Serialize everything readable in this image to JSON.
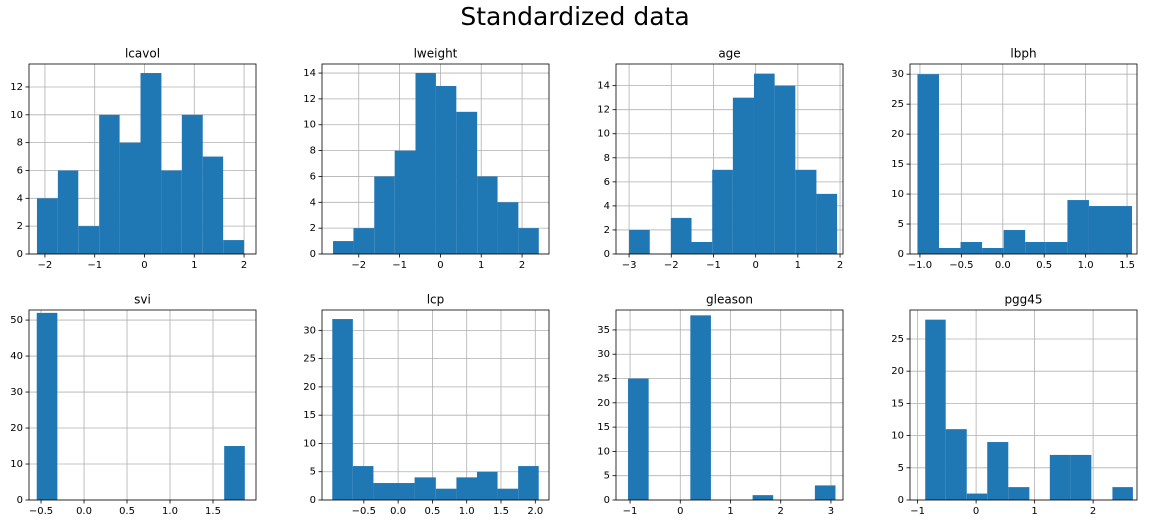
{
  "title": "Standardized data",
  "chart_data": [
    {
      "type": "histogram",
      "title": "lcavol",
      "color": "#1f77b4",
      "grid": true,
      "bins": [
        -2.16,
        -1.74,
        -1.33,
        -0.91,
        -0.5,
        -0.08,
        0.34,
        0.75,
        1.17,
        1.58,
        2.0
      ],
      "values": [
        4,
        6,
        2,
        10,
        8,
        13,
        6,
        10,
        7,
        1
      ],
      "xlim": [
        -2.32,
        2.24
      ],
      "xticks": [
        {
          "value": -2,
          "label": "−2"
        },
        {
          "value": -1,
          "label": "−1"
        },
        0,
        1,
        2
      ],
      "ylim": [
        0,
        13.65
      ],
      "yticks": [
        0,
        2,
        4,
        6,
        8,
        10,
        12
      ]
    },
    {
      "type": "histogram",
      "title": "lweight",
      "color": "#1f77b4",
      "grid": true,
      "bins": [
        -2.63,
        -2.13,
        -1.62,
        -1.12,
        -0.61,
        -0.11,
        0.39,
        0.9,
        1.4,
        1.91,
        2.41
      ],
      "values": [
        1,
        2,
        6,
        8,
        14,
        13,
        11,
        6,
        4,
        2
      ],
      "xlim": [
        -2.9,
        2.66
      ],
      "xticks": [
        {
          "value": -2,
          "label": "−2"
        },
        {
          "value": -1,
          "label": "−1"
        },
        0,
        1,
        2
      ],
      "ylim": [
        0,
        14.7
      ],
      "yticks": [
        0,
        2,
        4,
        6,
        8,
        10,
        12,
        14
      ]
    },
    {
      "type": "histogram",
      "title": "age",
      "color": "#1f77b4",
      "grid": true,
      "bins": [
        -3.0,
        -2.51,
        -2.01,
        -1.52,
        -1.03,
        -0.54,
        -0.04,
        0.45,
        0.94,
        1.44,
        1.93
      ],
      "values": [
        2,
        0,
        3,
        1,
        7,
        13,
        15,
        14,
        7,
        5
      ],
      "xlim": [
        -3.31,
        2.07
      ],
      "xticks": [
        {
          "value": -3,
          "label": "−3"
        },
        {
          "value": -2,
          "label": "−2"
        },
        {
          "value": -1,
          "label": "−1"
        },
        0,
        1,
        2
      ],
      "ylim": [
        0,
        15.8
      ],
      "yticks": [
        0,
        2,
        4,
        6,
        8,
        10,
        12,
        14
      ]
    },
    {
      "type": "histogram",
      "title": "lbph",
      "color": "#1f77b4",
      "grid": true,
      "bins": [
        -1.03,
        -0.77,
        -0.51,
        -0.25,
        0.01,
        0.27,
        0.52,
        0.78,
        1.04,
        1.3,
        1.56
      ],
      "values": [
        30,
        1,
        2,
        1,
        4,
        2,
        2,
        9,
        8,
        8
      ],
      "xlim": [
        -1.12,
        1.62
      ],
      "xticks": [
        {
          "value": -1,
          "label": "−1.0"
        },
        {
          "value": -0.5,
          "label": "−0.5"
        },
        {
          "value": 0,
          "label": "0.0"
        },
        0.5,
        {
          "value": 1,
          "label": "1.0"
        },
        1.5
      ],
      "ylim": [
        0,
        31.7
      ],
      "yticks": [
        0,
        5,
        10,
        15,
        20,
        25,
        30
      ]
    },
    {
      "type": "histogram",
      "title": "svi",
      "color": "#1f77b4",
      "grid": true,
      "bins": [
        -0.55,
        -0.31,
        -0.07,
        0.18,
        0.42,
        0.66,
        0.9,
        1.14,
        1.39,
        1.63,
        1.87
      ],
      "values": [
        52,
        0,
        0,
        0,
        0,
        0,
        0,
        0,
        0,
        15
      ],
      "xlim": [
        -0.64,
        2.0
      ],
      "xticks": [
        {
          "value": -0.5,
          "label": "−0.5"
        },
        {
          "value": 0,
          "label": "0.0"
        },
        0.5,
        {
          "value": 1,
          "label": "1.0"
        },
        1.5
      ],
      "ylim": [
        0,
        52.8
      ],
      "yticks": [
        0,
        10,
        20,
        30,
        40,
        50
      ]
    },
    {
      "type": "histogram",
      "title": "lcp",
      "color": "#1f77b4",
      "grid": true,
      "bins": [
        -0.96,
        -0.66,
        -0.36,
        -0.06,
        0.24,
        0.55,
        0.85,
        1.15,
        1.45,
        1.75,
        2.05
      ],
      "values": [
        32,
        6,
        3,
        3,
        4,
        2,
        4,
        5,
        2,
        6
      ],
      "xlim": [
        -1.11,
        2.2
      ],
      "xticks": [
        {
          "value": -0.5,
          "label": "−0.5"
        },
        {
          "value": 0,
          "label": "0.0"
        },
        0.5,
        {
          "value": 1,
          "label": "1.0"
        },
        1.5,
        {
          "value": 2,
          "label": "2.0"
        }
      ],
      "ylim": [
        0,
        33.6
      ],
      "yticks": [
        0,
        5,
        10,
        15,
        20,
        25,
        30
      ]
    },
    {
      "type": "histogram",
      "title": "gleason",
      "color": "#1f77b4",
      "grid": true,
      "bins": [
        -1.04,
        -0.63,
        -0.21,
        0.2,
        0.61,
        1.03,
        1.44,
        1.85,
        2.26,
        2.68,
        3.09
      ],
      "values": [
        25,
        0,
        0,
        38,
        0,
        0,
        1,
        0,
        0,
        3
      ],
      "xlim": [
        -1.28,
        3.24
      ],
      "xticks": [
        {
          "value": -1,
          "label": "−1"
        },
        0,
        1,
        2,
        3
      ],
      "ylim": [
        0,
        39.1
      ],
      "yticks": [
        0,
        5,
        10,
        15,
        20,
        25,
        30,
        35
      ]
    },
    {
      "type": "histogram",
      "title": "pgg45",
      "color": "#1f77b4",
      "grid": true,
      "bins": [
        -0.87,
        -0.52,
        -0.16,
        0.19,
        0.55,
        0.91,
        1.26,
        1.62,
        1.97,
        2.33,
        2.68
      ],
      "values": [
        28,
        11,
        1,
        9,
        2,
        0,
        7,
        7,
        0,
        2
      ],
      "xlim": [
        -1.13,
        2.75
      ],
      "xticks": [
        {
          "value": -1,
          "label": "−1"
        },
        0,
        1,
        2
      ],
      "ylim": [
        0,
        29.5
      ],
      "yticks": [
        0,
        5,
        10,
        15,
        20,
        25
      ]
    }
  ]
}
